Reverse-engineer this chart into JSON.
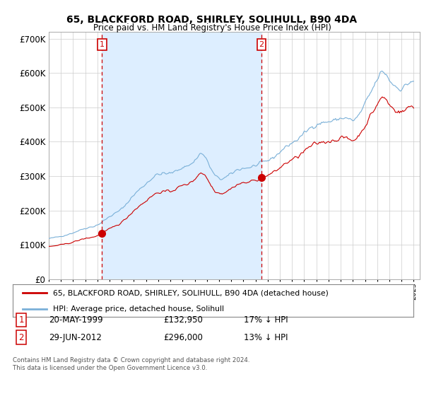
{
  "title": "65, BLACKFORD ROAD, SHIRLEY, SOLIHULL, B90 4DA",
  "subtitle": "Price paid vs. HM Land Registry's House Price Index (HPI)",
  "sale1_date": "20-MAY-1999",
  "sale1_price": 132950,
  "sale2_date": "29-JUN-2012",
  "sale2_price": 296000,
  "sale1_x": 1999.38,
  "sale2_x": 2012.49,
  "legend_line1": "65, BLACKFORD ROAD, SHIRLEY, SOLIHULL, B90 4DA (detached house)",
  "legend_line2": "HPI: Average price, detached house, Solihull",
  "footer": "Contains HM Land Registry data © Crown copyright and database right 2024.\nThis data is licensed under the Open Government Licence v3.0.",
  "hpi_color": "#7ab0d8",
  "price_color": "#cc0000",
  "vline_color": "#cc0000",
  "shade_color": "#ddeeff",
  "background_color": "#ffffff",
  "grid_color": "#cccccc",
  "ylim": [
    0,
    720000
  ],
  "xlim_start": 1995.0,
  "xlim_end": 2025.5
}
